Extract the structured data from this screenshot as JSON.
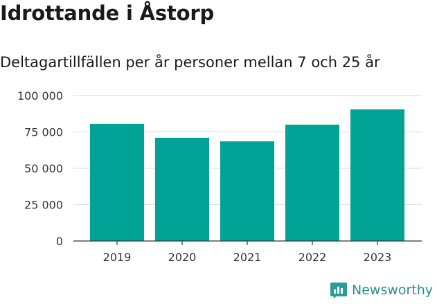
{
  "header": {
    "title": "Idrottande i Åstorp",
    "subtitle": "Deltagartillfällen per år personer mellan 7 och 25 år"
  },
  "brand": {
    "name": "Newsworthy",
    "icon": "bar-chart-logo-icon",
    "color": "#2a9d98"
  },
  "chart_data": {
    "type": "bar",
    "categories": [
      "2019",
      "2020",
      "2021",
      "2022",
      "2023"
    ],
    "values": [
      80500,
      71000,
      68500,
      80000,
      90500
    ],
    "ylim": [
      0,
      100000
    ],
    "yticks": [
      0,
      25000,
      50000,
      75000,
      100000
    ],
    "ytick_labels": [
      "0",
      "25 000",
      "50 000",
      "75 000",
      "100 000"
    ],
    "grid": true,
    "bar_color": "#00a396",
    "xlabel": "",
    "ylabel": ""
  }
}
